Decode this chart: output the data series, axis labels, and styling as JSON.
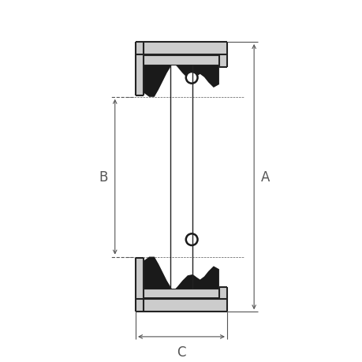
{
  "bg_color": "#ffffff",
  "line_color": "#222222",
  "fill_black": "#1a1a1a",
  "fill_gray": "#cccccc",
  "dim_color": "#555555",
  "label_A": "A",
  "label_B": "B",
  "label_C": "C",
  "fig_width": 4.6,
  "fig_height": 4.6,
  "dpi": 100,
  "xlim": [
    -5.5,
    5.5
  ],
  "ylim": [
    -8.5,
    8.5
  ]
}
